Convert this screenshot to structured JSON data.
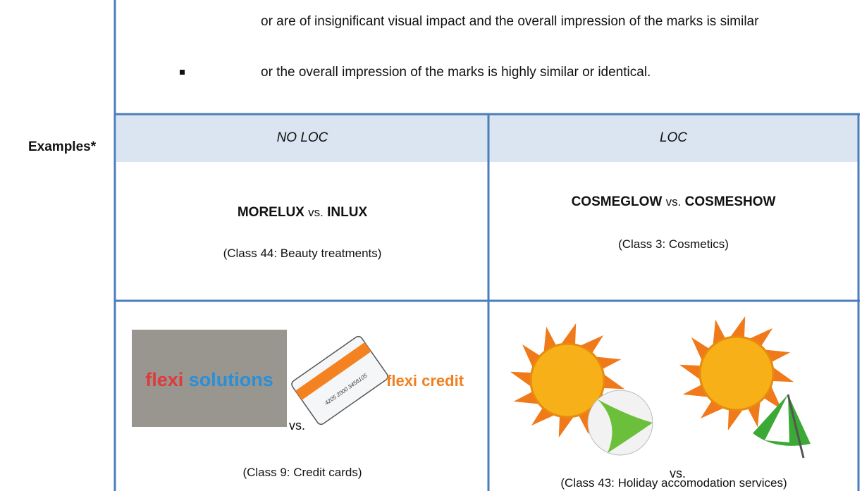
{
  "text": {
    "continued_line": "or are of insignificant visual impact and the overall impression of the marks is similar",
    "bullet": "or the overall impression of the marks is highly similar or identical."
  },
  "table": {
    "row_label": "Examples*",
    "headers": [
      "NO LOC",
      "LOC"
    ],
    "rows": [
      [
        {
          "mark_a": "MORELUX",
          "versus": "vs.",
          "mark_b": "INLUX",
          "class": "(Class 44: Beauty treatments)"
        },
        {
          "mark_a": "COSMEGLOW",
          "versus": "vs.",
          "mark_b": "COSMESHOW",
          "class": "(Class 3: Cosmetics)"
        }
      ],
      [
        {
          "image_a_words": [
            "flexi",
            "solutions"
          ],
          "card_number": "4205 2000 3456105",
          "image_b_text": "flexi credit",
          "versus": "vs.",
          "class": "(Class 9: Credit cards)"
        },
        {
          "versus": "vs.",
          "class": "(Class 43: Holiday accomodation services)"
        }
      ]
    ]
  }
}
